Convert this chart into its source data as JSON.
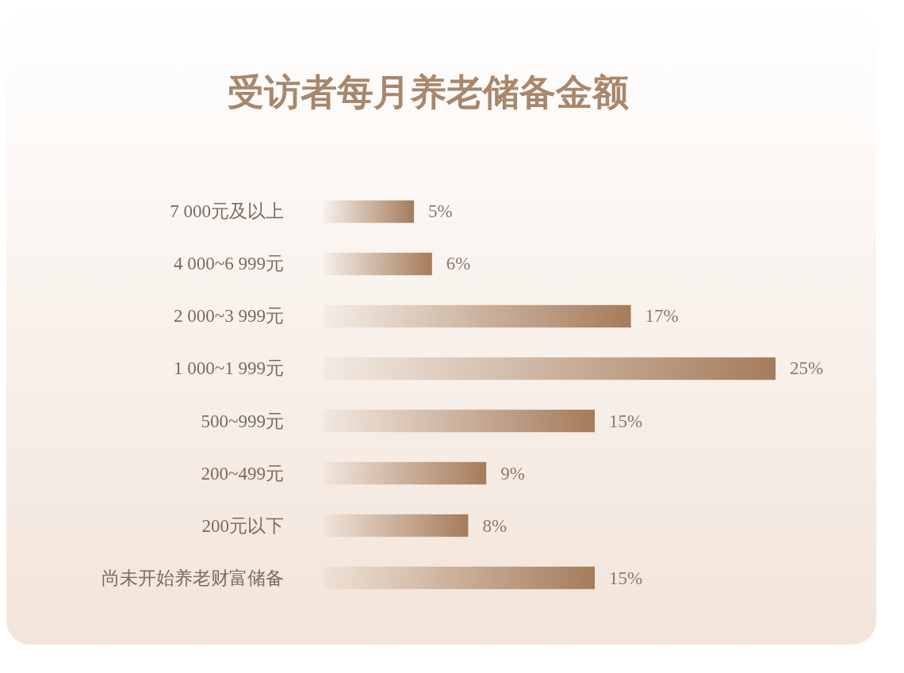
{
  "chart_data": {
    "type": "bar",
    "orientation": "horizontal",
    "title": "受访者每月养老储备金额",
    "categories": [
      "7 000元及以上",
      "4 000~6 999元",
      "2 000~3 999元",
      "1 000~1 999元",
      "500~999元",
      "200~499元",
      "200元以下",
      "尚未开始养老财富储备"
    ],
    "values": [
      5,
      6,
      17,
      25,
      15,
      9,
      8,
      15
    ],
    "value_labels": [
      "5%",
      "6%",
      "17%",
      "25%",
      "15%",
      "9%",
      "8%",
      "15%"
    ],
    "color": "#a57c5b"
  }
}
